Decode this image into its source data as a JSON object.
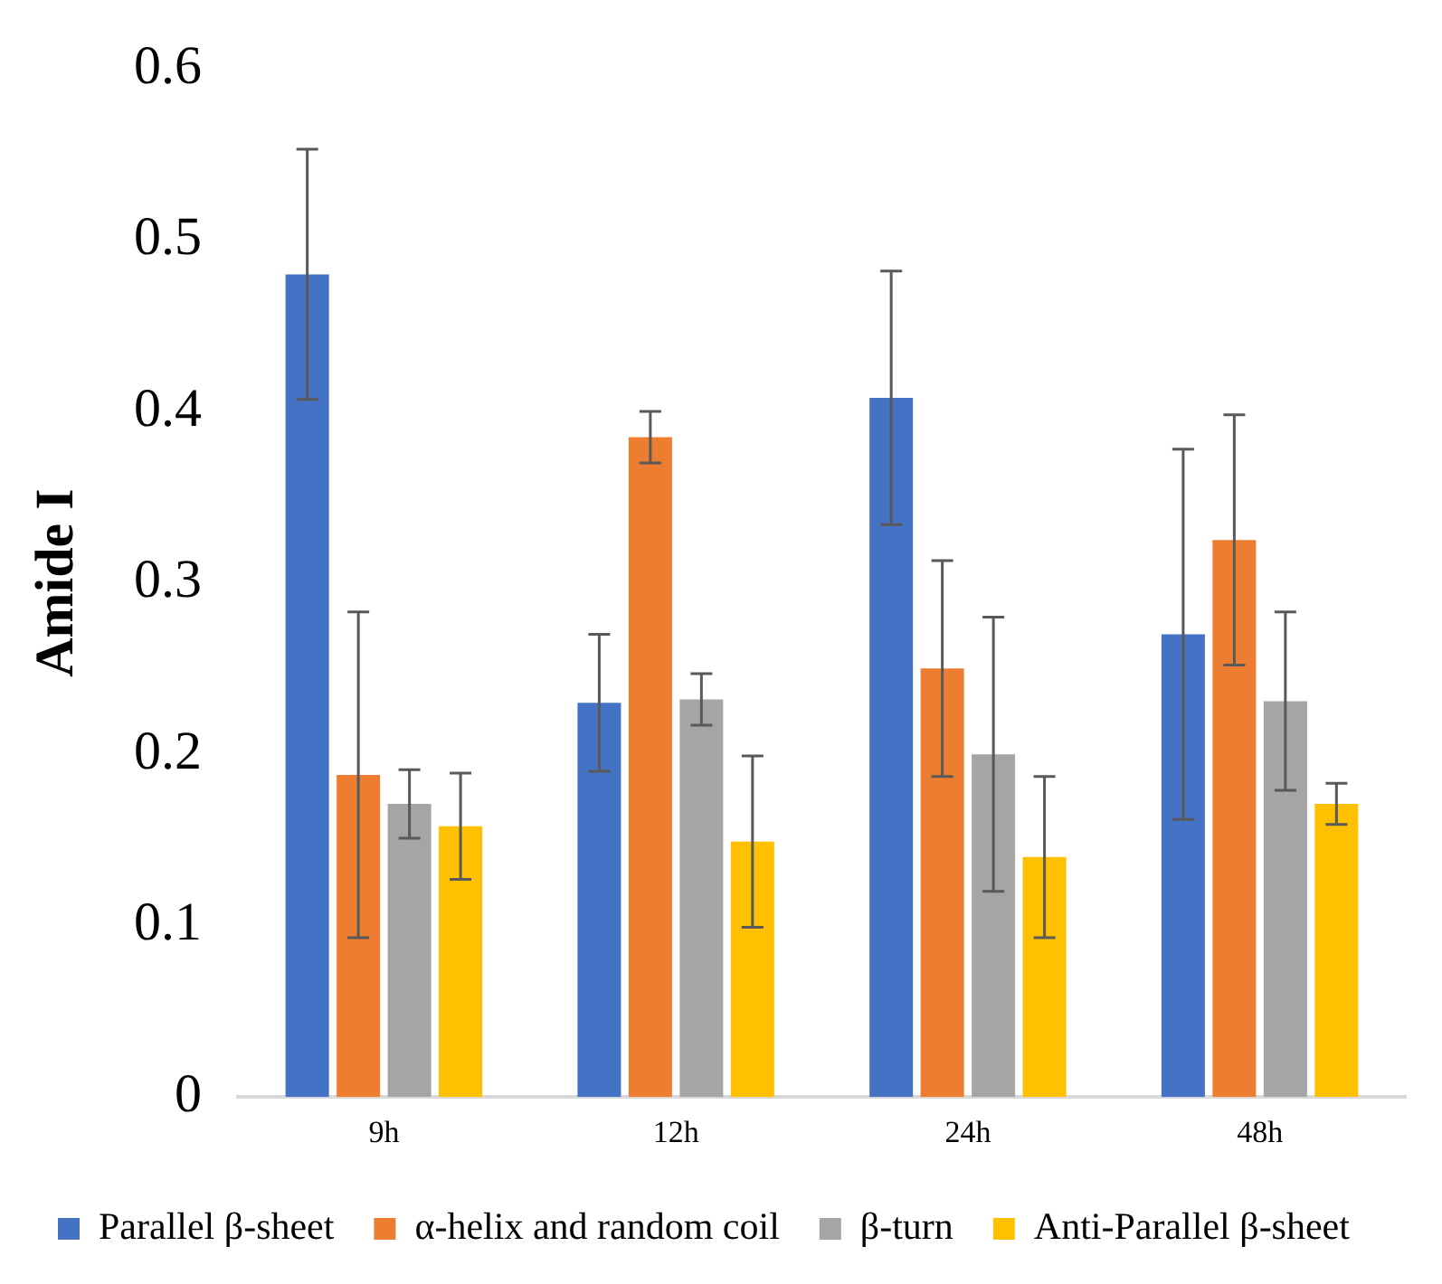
{
  "chart_data": {
    "type": "bar",
    "ylabel": "Amide I",
    "categories": [
      "9h",
      "12h",
      "24h",
      "48h"
    ],
    "series": [
      {
        "name": "Parallel β-sheet",
        "color": "#4472c4",
        "values": [
          0.48,
          0.23,
          0.408,
          0.27
        ],
        "errors": [
          0.073,
          0.04,
          0.074,
          0.108
        ]
      },
      {
        "name": "α-helix and random coil",
        "color": "#ed7d31",
        "values": [
          0.188,
          0.385,
          0.25,
          0.325
        ],
        "errors": [
          0.095,
          0.015,
          0.063,
          0.073
        ]
      },
      {
        "name": "β-turn",
        "color": "#a5a5a5",
        "values": [
          0.171,
          0.232,
          0.2,
          0.231
        ],
        "errors": [
          0.02,
          0.015,
          0.08,
          0.052
        ]
      },
      {
        "name": "Anti-Parallel β-sheet",
        "color": "#ffc000",
        "values": [
          0.158,
          0.149,
          0.14,
          0.171
        ],
        "errors": [
          0.031,
          0.05,
          0.047,
          0.012
        ]
      }
    ],
    "ylim": [
      0,
      0.6
    ],
    "yticks": [
      0,
      0.1,
      0.2,
      0.3,
      0.4,
      0.5,
      0.6
    ],
    "grid": false,
    "legend": "bottom"
  }
}
